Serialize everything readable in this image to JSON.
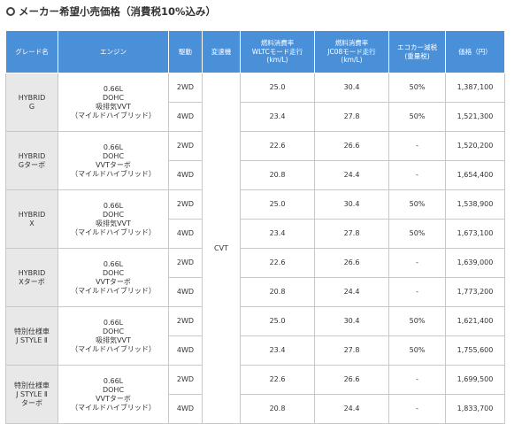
{
  "title": "メーカー希望小売価格（消費税10%込み）",
  "headers": {
    "grade": "グレード名",
    "engine": "エンジン",
    "drive": "駆動",
    "transmission": "変速機",
    "wltc": [
      "燃料消費率",
      "WLTCモード走行",
      "(km/L)"
    ],
    "jc08": [
      "燃料消費率",
      "JC08モード走行",
      "(km/L)"
    ],
    "eco": [
      "エコカー減税",
      "(重量税)"
    ],
    "price": "価格（円）"
  },
  "transmission": "CVT",
  "groups": [
    {
      "grade": [
        "HYBRID",
        "G"
      ],
      "engine": [
        "0.66L",
        "DOHC",
        "吸排気VVT",
        "（マイルドハイブリッド）"
      ],
      "rows": [
        {
          "drive": "2WD",
          "wltc": "25.0",
          "jc08": "30.4",
          "eco": "50%",
          "price": "1,387,100"
        },
        {
          "drive": "4WD",
          "wltc": "23.4",
          "jc08": "27.8",
          "eco": "50%",
          "price": "1,521,300"
        }
      ]
    },
    {
      "grade": [
        "HYBRID",
        "Gターボ"
      ],
      "engine": [
        "0.66L",
        "DOHC",
        "VVTターボ",
        "（マイルドハイブリッド）"
      ],
      "rows": [
        {
          "drive": "2WD",
          "wltc": "22.6",
          "jc08": "26.6",
          "eco": "-",
          "price": "1,520,200"
        },
        {
          "drive": "4WD",
          "wltc": "20.8",
          "jc08": "24.4",
          "eco": "-",
          "price": "1,654,400"
        }
      ]
    },
    {
      "grade": [
        "HYBRID",
        "X"
      ],
      "engine": [
        "0.66L",
        "DOHC",
        "吸排気VVT",
        "（マイルドハイブリッド）"
      ],
      "rows": [
        {
          "drive": "2WD",
          "wltc": "25.0",
          "jc08": "30.4",
          "eco": "50%",
          "price": "1,538,900"
        },
        {
          "drive": "4WD",
          "wltc": "23.4",
          "jc08": "27.8",
          "eco": "50%",
          "price": "1,673,100"
        }
      ]
    },
    {
      "grade": [
        "HYBRID",
        "Xターボ"
      ],
      "engine": [
        "0.66L",
        "DOHC",
        "VVTターボ",
        "（マイルドハイブリッド）"
      ],
      "rows": [
        {
          "drive": "2WD",
          "wltc": "22.6",
          "jc08": "26.6",
          "eco": "-",
          "price": "1,639,000"
        },
        {
          "drive": "4WD",
          "wltc": "20.8",
          "jc08": "24.4",
          "eco": "-",
          "price": "1,773,200"
        }
      ]
    },
    {
      "grade": [
        "特別仕様車",
        "J STYLE Ⅱ"
      ],
      "engine": [
        "0.66L",
        "DOHC",
        "吸排気VVT",
        "（マイルドハイブリッド）"
      ],
      "rows": [
        {
          "drive": "2WD",
          "wltc": "25.0",
          "jc08": "30.4",
          "eco": "50%",
          "price": "1,621,400"
        },
        {
          "drive": "4WD",
          "wltc": "23.4",
          "jc08": "27.8",
          "eco": "50%",
          "price": "1,755,600"
        }
      ]
    },
    {
      "grade": [
        "特別仕様車",
        "J STYLE Ⅱ",
        "ターボ"
      ],
      "engine": [
        "0.66L",
        "DOHC",
        "VVTターボ",
        "（マイルドハイブリッド）"
      ],
      "rows": [
        {
          "drive": "2WD",
          "wltc": "22.6",
          "jc08": "26.6",
          "eco": "-",
          "price": "1,699,500"
        },
        {
          "drive": "4WD",
          "wltc": "20.8",
          "jc08": "24.4",
          "eco": "-",
          "price": "1,833,700"
        }
      ]
    }
  ]
}
